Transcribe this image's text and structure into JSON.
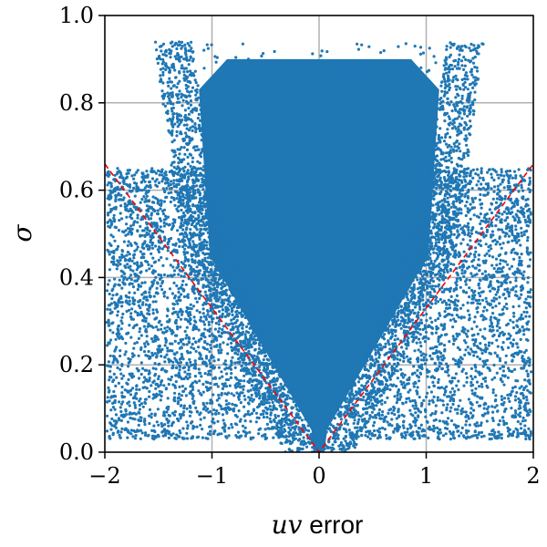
{
  "chart_data": {
    "type": "scatter",
    "xlabel_math": "uv",
    "xlabel_text": " error",
    "ylabel": "σ",
    "xlim": [
      -2,
      2
    ],
    "ylim": [
      0,
      1
    ],
    "x_ticks": [
      -2,
      -1,
      0,
      1,
      2
    ],
    "x_tick_labels": [
      "−2",
      "−1",
      "0",
      "1",
      "2"
    ],
    "y_ticks": [
      0,
      0.2,
      0.4,
      0.6,
      0.8,
      1.0
    ],
    "y_tick_labels": [
      "0.0",
      "0.2",
      "0.4",
      "0.6",
      "0.8",
      "1.0"
    ],
    "grid": true,
    "point_color": "#1f77b4",
    "reference_line": {
      "style": "dashed",
      "color": "#ff0000",
      "points": [
        [
          -2,
          0.66
        ],
        [
          0,
          0.0
        ],
        [
          2,
          0.66
        ]
      ]
    },
    "distribution": {
      "dense_core": {
        "sigma_range": [
          0.0,
          0.9
        ],
        "x_half_width_at_top": 1.1,
        "x_half_width_at_bottom": 0.05
      },
      "sparse_wings": {
        "x_range": [
          -2,
          2
        ],
        "sigma_range": [
          0.03,
          0.6
        ]
      },
      "max_sigma": 0.94
    }
  }
}
